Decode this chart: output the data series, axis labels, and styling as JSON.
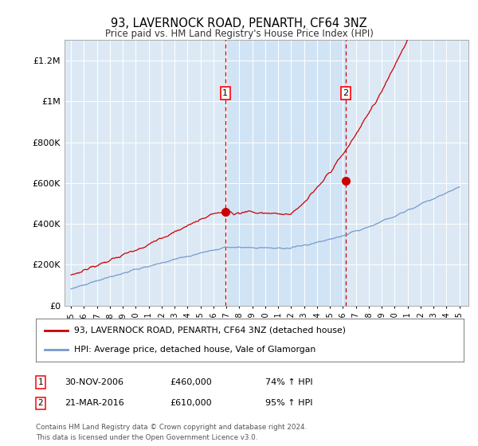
{
  "title1": "93, LAVERNOCK ROAD, PENARTH, CF64 3NZ",
  "title2": "Price paid vs. HM Land Registry's House Price Index (HPI)",
  "ylabel_ticks": [
    "£0",
    "£200K",
    "£400K",
    "£600K",
    "£800K",
    "£1M",
    "£1.2M"
  ],
  "ytick_values": [
    0,
    200000,
    400000,
    600000,
    800000,
    1000000,
    1200000
  ],
  "ylim": [
    0,
    1300000
  ],
  "xlim_start": 1994.5,
  "xlim_end": 2025.7,
  "background_color": "#ffffff",
  "plot_bg_color": "#dce9f5",
  "grid_color": "#ffffff",
  "red_line_color": "#cc0000",
  "blue_line_color": "#7799cc",
  "marker1_x": 2006.92,
  "marker1_y": 460000,
  "marker2_x": 2016.22,
  "marker2_y": 610000,
  "legend_red_label": "93, LAVERNOCK ROAD, PENARTH, CF64 3NZ (detached house)",
  "legend_blue_label": "HPI: Average price, detached house, Vale of Glamorgan",
  "table_rows": [
    {
      "num": "1",
      "date": "30-NOV-2006",
      "price": "£460,000",
      "hpi": "74% ↑ HPI"
    },
    {
      "num": "2",
      "date": "21-MAR-2016",
      "price": "£610,000",
      "hpi": "95% ↑ HPI"
    }
  ],
  "footnote": "Contains HM Land Registry data © Crown copyright and database right 2024.\nThis data is licensed under the Open Government Licence v3.0.",
  "xtick_years": [
    1995,
    1996,
    1997,
    1998,
    1999,
    2000,
    2001,
    2002,
    2003,
    2004,
    2005,
    2006,
    2007,
    2008,
    2009,
    2010,
    2011,
    2012,
    2013,
    2014,
    2015,
    2016,
    2017,
    2018,
    2019,
    2020,
    2021,
    2022,
    2023,
    2024,
    2025
  ]
}
